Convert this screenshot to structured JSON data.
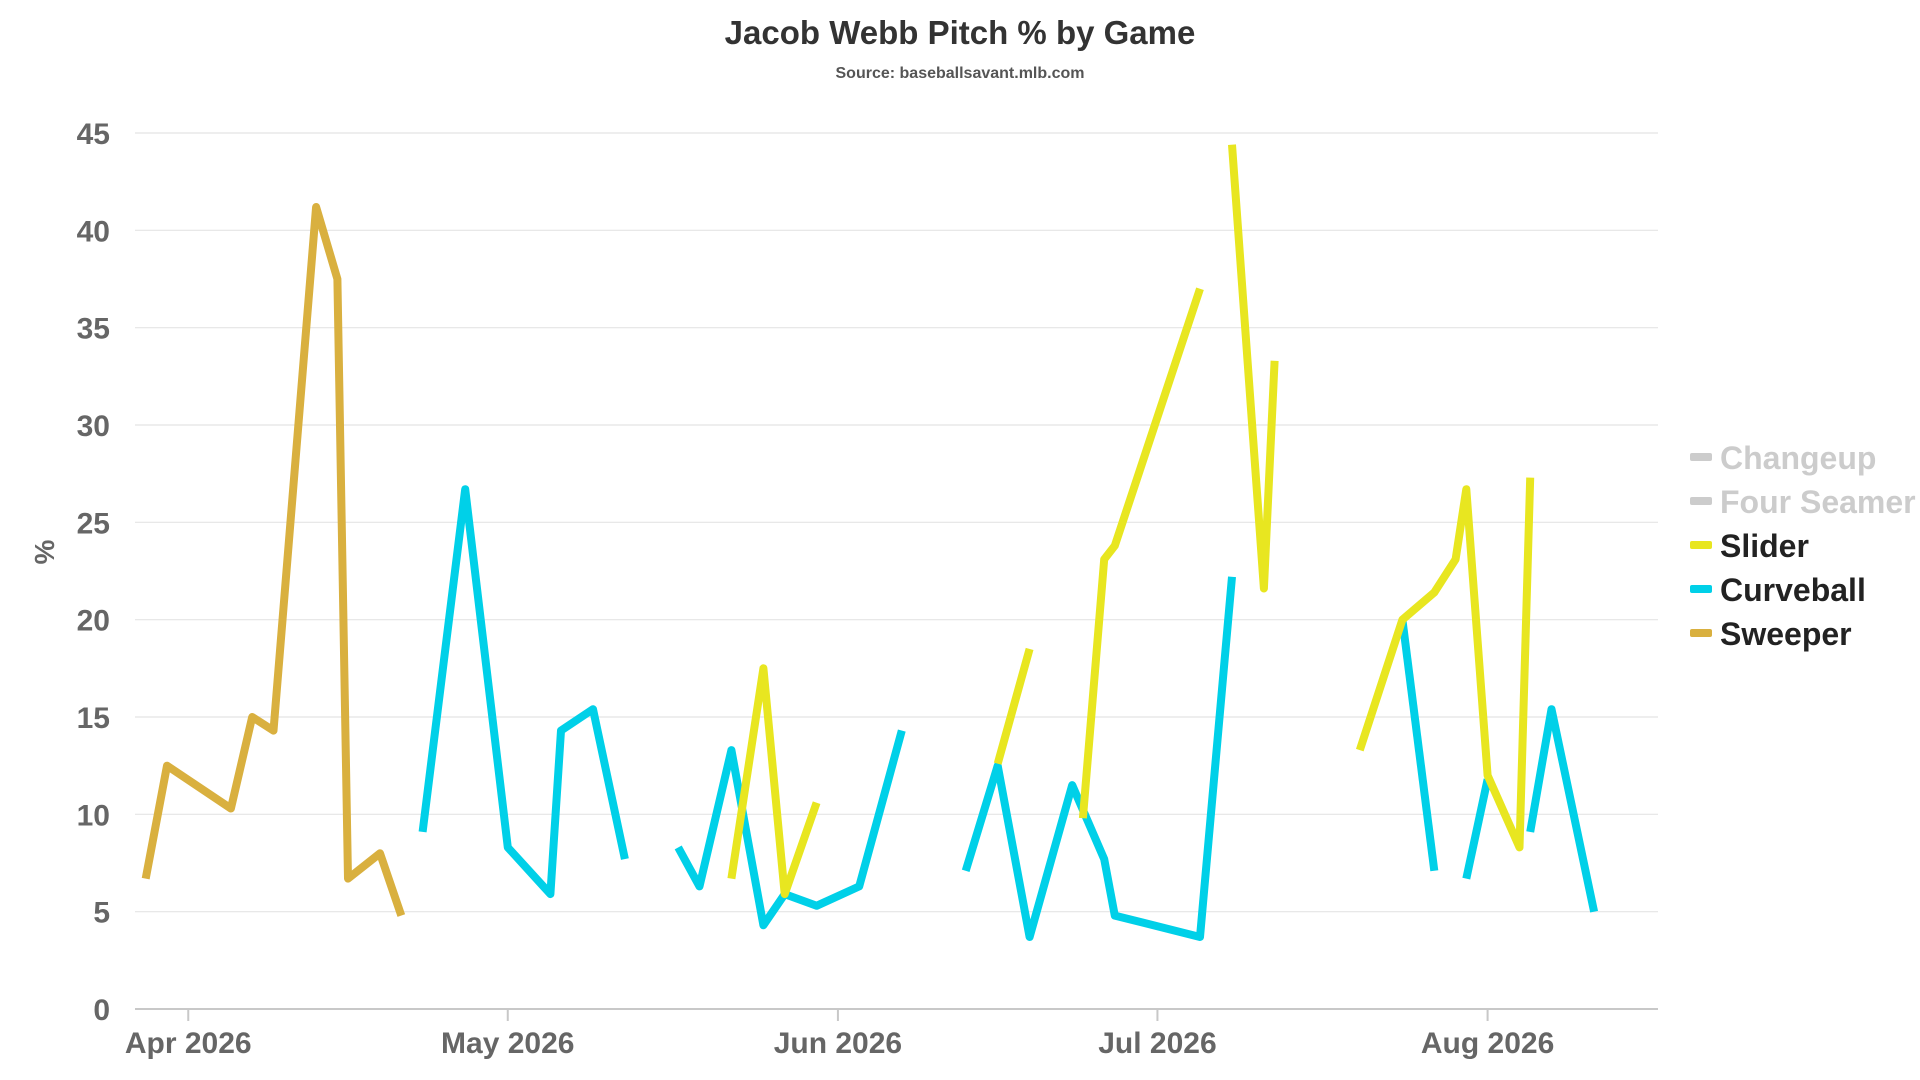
{
  "chart_data": {
    "type": "line",
    "title": "Jacob Webb Pitch % by Game",
    "subtitle": "Source: baseballsavant.mlb.com",
    "xlabel": "",
    "ylabel": "%",
    "ylim": [
      0,
      45
    ],
    "yticks": [
      0,
      5,
      10,
      15,
      20,
      25,
      30,
      35,
      40,
      45
    ],
    "xlim": [
      "2026-03-27",
      "2026-08-17"
    ],
    "xticks": [
      {
        "date": "2026-04-01",
        "label": "Apr 2026"
      },
      {
        "date": "2026-05-01",
        "label": "May 2026"
      },
      {
        "date": "2026-06-01",
        "label": "Jun 2026"
      },
      {
        "date": "2026-07-01",
        "label": "Jul 2026"
      },
      {
        "date": "2026-08-01",
        "label": "Aug 2026"
      }
    ],
    "grid": true,
    "legend": "right",
    "series": [
      {
        "name": "Changeup",
        "color": "#cccccc",
        "hidden": true,
        "segments": []
      },
      {
        "name": "Four Seamer",
        "color": "#cccccc",
        "hidden": true,
        "segments": []
      },
      {
        "name": "Slider",
        "color": "#e8e620",
        "hidden": false,
        "segments": [
          [
            [
              "2026-05-22",
              6.7
            ],
            [
              "2026-05-25",
              17.5
            ],
            [
              "2026-05-27",
              5.9
            ],
            [
              "2026-05-30",
              10.6
            ]
          ],
          [
            [
              "2026-06-16",
              12.6
            ],
            [
              "2026-06-19",
              18.5
            ]
          ],
          [
            [
              "2026-06-24",
              9.8
            ],
            [
              "2026-06-26",
              23.1
            ],
            [
              "2026-06-27",
              23.8
            ],
            [
              "2026-07-05",
              37.0
            ]
          ],
          [
            [
              "2026-07-08",
              44.4
            ],
            [
              "2026-07-11",
              21.6
            ],
            [
              "2026-07-12",
              33.3
            ]
          ],
          [
            [
              "2026-07-20",
              13.3
            ],
            [
              "2026-07-24",
              20.0
            ],
            [
              "2026-07-27",
              21.4
            ],
            [
              "2026-07-29",
              23.1
            ],
            [
              "2026-07-30",
              26.7
            ],
            [
              "2026-08-01",
              12.0
            ],
            [
              "2026-08-04",
              8.3
            ],
            [
              "2026-08-05",
              27.3
            ]
          ]
        ]
      },
      {
        "name": "Curveball",
        "color": "#00d0e8",
        "hidden": false,
        "segments": [
          [
            [
              "2026-04-23",
              9.1
            ],
            [
              "2026-04-27",
              26.7
            ],
            [
              "2026-05-01",
              8.3
            ],
            [
              "2026-05-05",
              5.9
            ],
            [
              "2026-05-06",
              14.3
            ],
            [
              "2026-05-09",
              15.4
            ],
            [
              "2026-05-12",
              7.7
            ]
          ],
          [
            [
              "2026-05-17",
              8.3
            ],
            [
              "2026-05-19",
              6.3
            ],
            [
              "2026-05-22",
              13.3
            ],
            [
              "2026-05-25",
              4.3
            ],
            [
              "2026-05-27",
              5.9
            ],
            [
              "2026-05-30",
              5.3
            ],
            [
              "2026-06-03",
              6.3
            ],
            [
              "2026-06-07",
              14.3
            ]
          ],
          [
            [
              "2026-06-13",
              7.1
            ],
            [
              "2026-06-16",
              12.5
            ],
            [
              "2026-06-19",
              3.7
            ],
            [
              "2026-06-23",
              11.5
            ],
            [
              "2026-06-26",
              7.7
            ],
            [
              "2026-06-27",
              4.8
            ],
            [
              "2026-07-05",
              3.7
            ],
            [
              "2026-07-08",
              22.2
            ]
          ],
          [
            [
              "2026-07-24",
              20.0
            ],
            [
              "2026-07-27",
              7.1
            ]
          ],
          [
            [
              "2026-07-30",
              6.7
            ],
            [
              "2026-08-01",
              11.8
            ]
          ],
          [
            [
              "2026-08-05",
              9.1
            ],
            [
              "2026-08-07",
              15.4
            ],
            [
              "2026-08-11",
              5.0
            ]
          ]
        ]
      },
      {
        "name": "Sweeper",
        "color": "#d9b03f",
        "hidden": false,
        "segments": [
          [
            [
              "2026-03-28",
              6.7
            ],
            [
              "2026-03-30",
              12.5
            ],
            [
              "2026-04-05",
              10.3
            ],
            [
              "2026-04-07",
              15.0
            ],
            [
              "2026-04-09",
              14.3
            ],
            [
              "2026-04-13",
              41.2
            ],
            [
              "2026-04-15",
              37.5
            ],
            [
              "2026-04-16",
              6.7
            ],
            [
              "2026-04-19",
              8.0
            ],
            [
              "2026-04-21",
              4.8
            ]
          ]
        ]
      }
    ]
  }
}
